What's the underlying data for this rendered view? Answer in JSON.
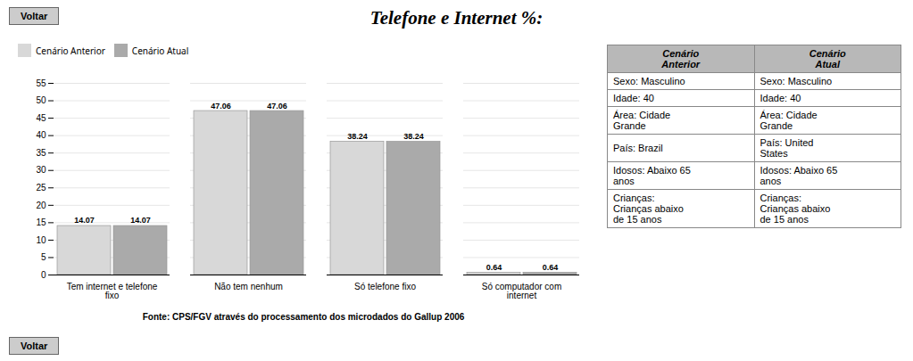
{
  "chart_data": {
    "type": "bar",
    "title": "Telefone e Internet %:",
    "categories": [
      "Tem internet e telefone fixo",
      "Não tem nenhum",
      "Só telefone fixo",
      "Só computador com internet"
    ],
    "series": [
      {
        "name": "Cenário Anterior",
        "color": "#d8d8d8",
        "values": [
          14.07,
          47.06,
          38.24,
          0.64
        ]
      },
      {
        "name": "Cenário Atual",
        "color": "#aaaaaa",
        "values": [
          14.07,
          47.06,
          38.24,
          0.64
        ]
      }
    ],
    "xlabel": "Fonte: CPS/FGV através do processamento dos microdados do Gallup 2006",
    "ylim": [
      0,
      55
    ],
    "yticks": [
      0,
      5,
      10,
      15,
      20,
      25,
      30,
      35,
      40,
      45,
      50,
      55
    ],
    "grid": true,
    "legend": "top",
    "data_labels": true,
    "annotations": [
      "Voltar",
      "Voltar"
    ],
    "table": {
      "header": [
        "Cenário\nAnterior",
        "Cenário\nAtual"
      ],
      "rows": [
        [
          "Sexo: Masculino",
          "Sexo: Masculino"
        ],
        [
          "Idade: 40",
          "Idade: 40"
        ],
        [
          "Área: Cidade\nGrande",
          "Área: Cidade\nGrande"
        ],
        [
          "País: Brazil",
          "País: United\nStates"
        ],
        [
          "Idosos: Abaixo 65\nanos",
          "Idosos: Abaixo 65\nanos"
        ],
        [
          "Crianças:\nCrianças abaixo\nde 15 anos",
          "Crianças:\nCrianças abaixo\nde 15 anos"
        ]
      ]
    }
  }
}
